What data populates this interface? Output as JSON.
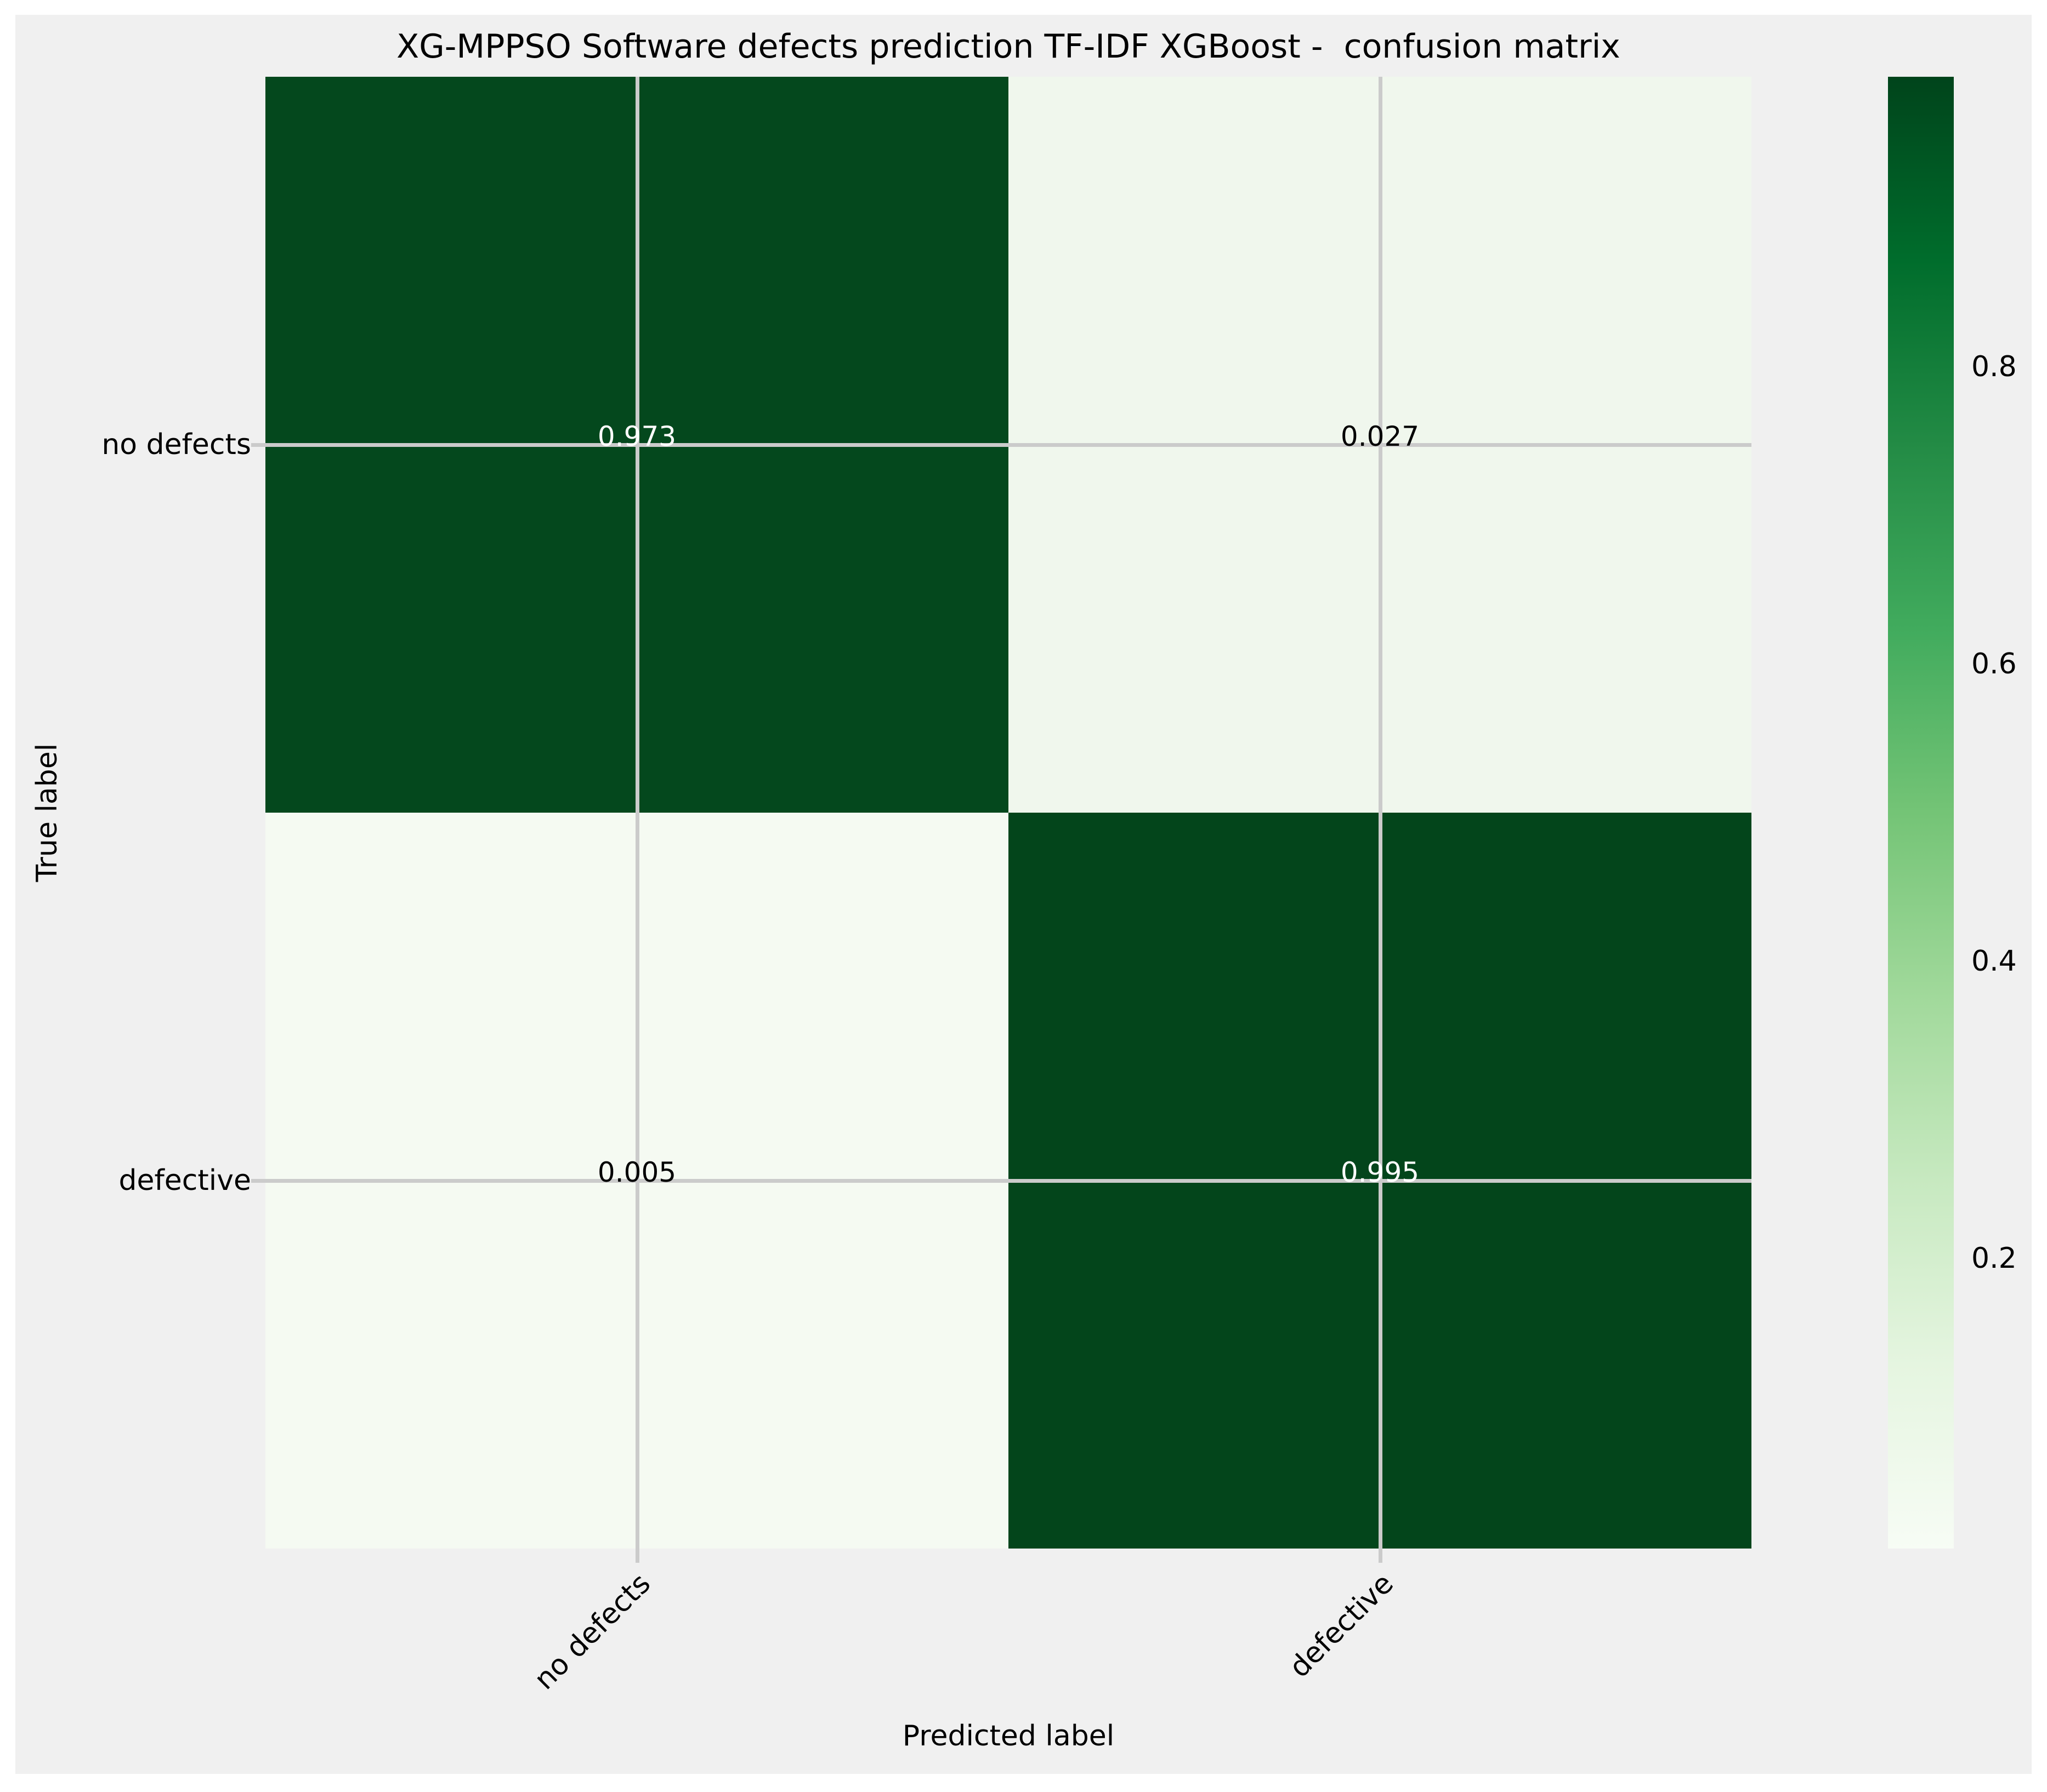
{
  "title": "XG-MPPSO Software defects prediction TF-IDF XGBoost -  confusion matrix",
  "axes": {
    "xlabel": "Predicted label",
    "ylabel": "True label"
  },
  "chart_data": {
    "type": "heatmap",
    "subtype": "confusion-matrix",
    "x_categories": [
      "no defects",
      "defective"
    ],
    "y_categories": [
      "no defects",
      "defective"
    ],
    "values": [
      [
        0.973,
        0.027
      ],
      [
        0.005,
        0.995
      ]
    ],
    "cell_labels": [
      [
        "0.973",
        "0.027"
      ],
      [
        "0.005",
        "0.995"
      ]
    ],
    "colormap": "Greens",
    "vmin": 0.005,
    "vmax": 0.995,
    "colorbar_ticks": [
      "0.8",
      "0.6",
      "0.4",
      "0.2"
    ],
    "grid": true,
    "xticks_rotation": 45,
    "legend_position": "colorbar-right"
  },
  "colors": {
    "page_bg": "#ffffff",
    "figure_bg": "#f0f0f0",
    "grid": "#cbcbcb",
    "cell_colors": [
      [
        "#04481d",
        "#f0f7ed"
      ],
      [
        "#f5faf2",
        "#03451b"
      ]
    ],
    "cell_text_colors": [
      [
        "#ffffff",
        "#000000"
      ],
      [
        "#000000",
        "#ffffff"
      ]
    ],
    "colorbar_top": "#00441b",
    "colorbar_bottom": "#f7fcf5"
  }
}
